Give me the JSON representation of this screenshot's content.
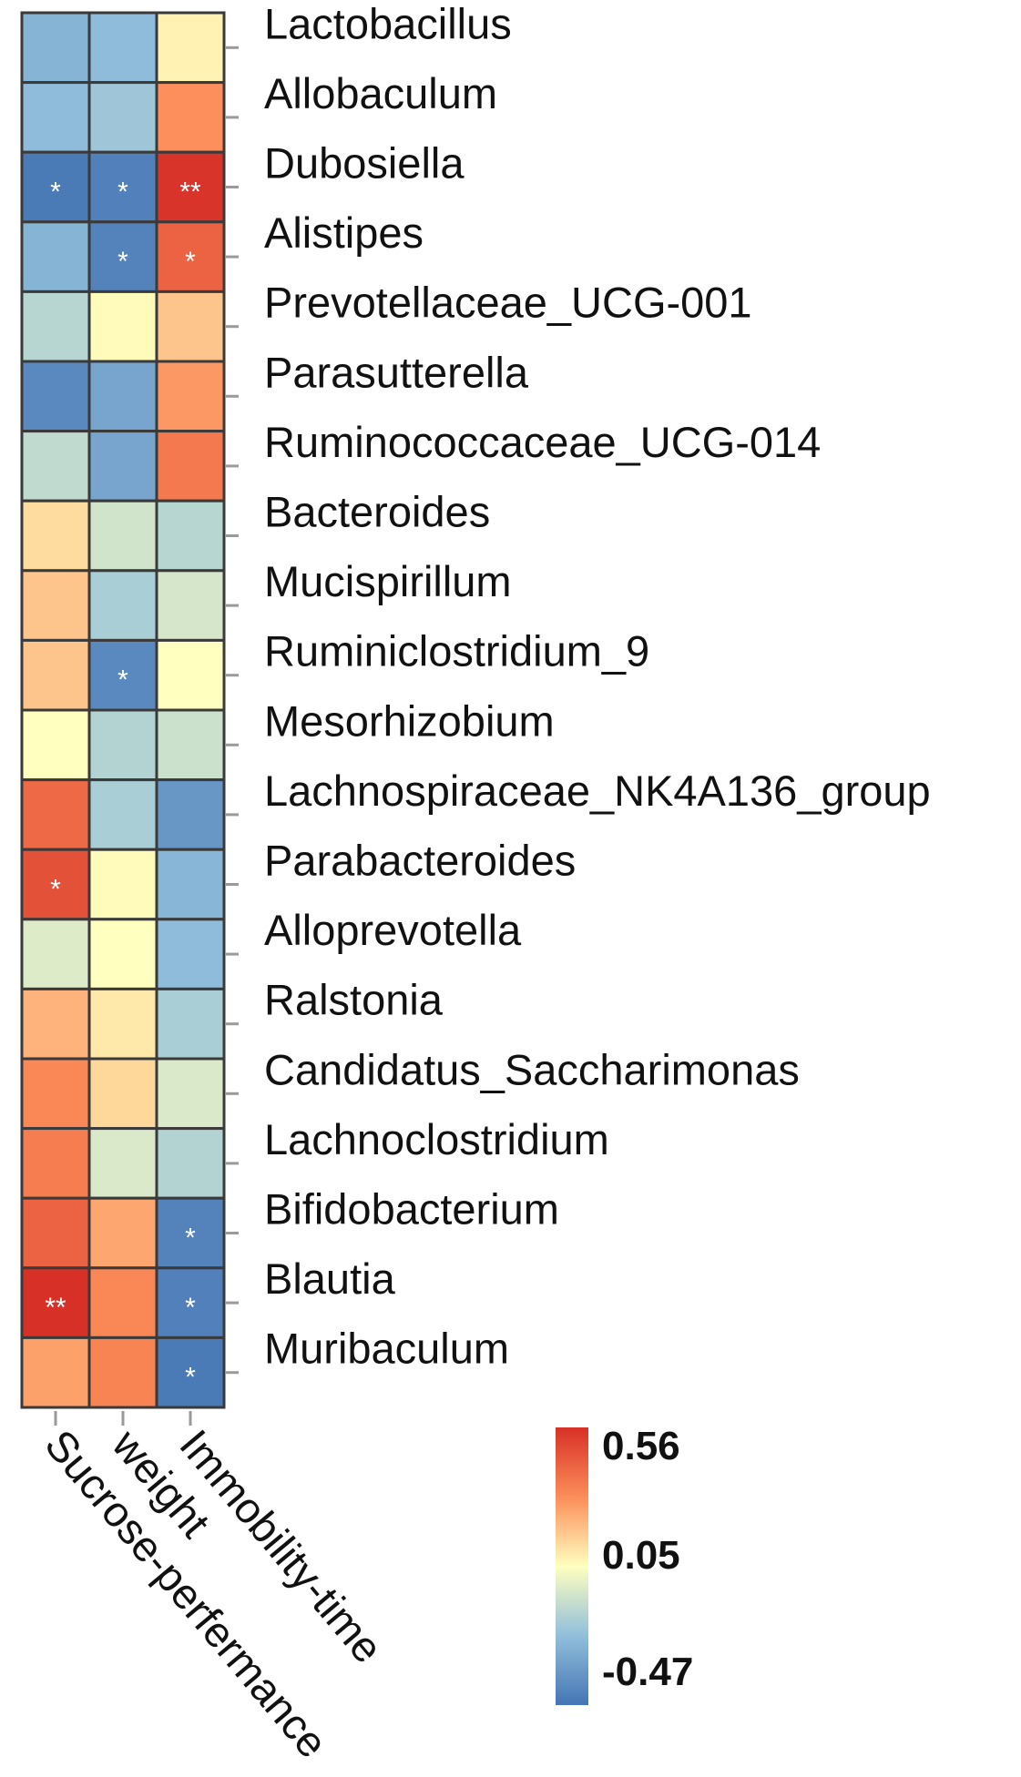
{
  "chart_data": {
    "type": "heatmap",
    "columns": [
      "Sucrose-perfermance",
      "weight",
      "Immobility-time"
    ],
    "rows": [
      "Lactobacillus",
      "Allobaculum",
      "Dubosiella",
      "Alistipes",
      "Prevotellaceae_UCG-001",
      "Parasutterella",
      "Ruminococcaceae_UCG-014",
      "Bacteroides",
      "Mucispirillum",
      "Ruminiclostridium_9",
      "Mesorhizobium",
      "Lachnospiraceae_NK4A136_group",
      "Parabacteroides",
      "Alloprevotella",
      "Ralstonia",
      "Candidatus_Saccharimonas",
      "Lachnoclostridium",
      "Bifidobacterium",
      "Blautia",
      "Muribaculum"
    ],
    "values": [
      [
        -0.25,
        -0.22,
        0.08
      ],
      [
        -0.22,
        -0.18,
        0.3
      ],
      [
        -0.45,
        -0.43,
        0.55
      ],
      [
        -0.25,
        -0.42,
        0.42
      ],
      [
        -0.12,
        0.06,
        0.18
      ],
      [
        -0.4,
        -0.3,
        0.28
      ],
      [
        -0.1,
        -0.3,
        0.36
      ],
      [
        0.13,
        -0.06,
        -0.12
      ],
      [
        0.18,
        -0.15,
        -0.05
      ],
      [
        0.18,
        -0.4,
        0.05
      ],
      [
        0.05,
        -0.13,
        -0.07
      ],
      [
        0.4,
        -0.15,
        -0.35
      ],
      [
        0.47,
        0.06,
        -0.24
      ],
      [
        -0.03,
        0.05,
        -0.22
      ],
      [
        0.22,
        0.1,
        -0.15
      ],
      [
        0.32,
        0.14,
        -0.04
      ],
      [
        0.35,
        -0.04,
        -0.13
      ],
      [
        0.42,
        0.25,
        -0.42
      ],
      [
        0.56,
        0.32,
        -0.43
      ],
      [
        0.26,
        0.33,
        -0.45
      ]
    ],
    "significance": [
      [
        "",
        "",
        ""
      ],
      [
        "",
        "",
        ""
      ],
      [
        "*",
        "*",
        "**"
      ],
      [
        "",
        "*",
        "*"
      ],
      [
        "",
        "",
        ""
      ],
      [
        "",
        "",
        ""
      ],
      [
        "",
        "",
        ""
      ],
      [
        "",
        "",
        ""
      ],
      [
        "",
        "",
        ""
      ],
      [
        "",
        "*",
        ""
      ],
      [
        "",
        "",
        ""
      ],
      [
        "",
        "",
        ""
      ],
      [
        "*",
        "",
        ""
      ],
      [
        "",
        "",
        ""
      ],
      [
        "",
        "",
        ""
      ],
      [
        "",
        "",
        ""
      ],
      [
        "",
        "",
        ""
      ],
      [
        "",
        "",
        "*"
      ],
      [
        "**",
        "",
        "*"
      ],
      [
        "",
        "",
        "*"
      ]
    ],
    "colorscale": {
      "min": -0.47,
      "mid": 0.05,
      "max": 0.56,
      "colors": [
        "#4575b4",
        "#91bfdb",
        "#ffffbf",
        "#fc8d59",
        "#d73027"
      ]
    },
    "legend": {
      "ticks": [
        "0.56",
        "0.05",
        "-0.47"
      ],
      "placement": "bottom-right"
    }
  }
}
